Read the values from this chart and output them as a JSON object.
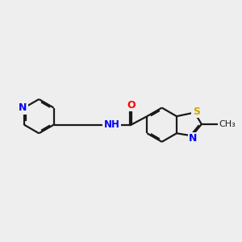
{
  "bg_color": "#eeeeee",
  "bond_color": "#1a1a1a",
  "N_color": "#0000ff",
  "O_color": "#ff0000",
  "S_color": "#ccaa00",
  "line_width": 1.6,
  "dbo": 0.055,
  "fig_w": 3.0,
  "fig_h": 3.0,
  "dpi": 100,
  "xlim": [
    0,
    10
  ],
  "ylim": [
    1,
    9
  ]
}
